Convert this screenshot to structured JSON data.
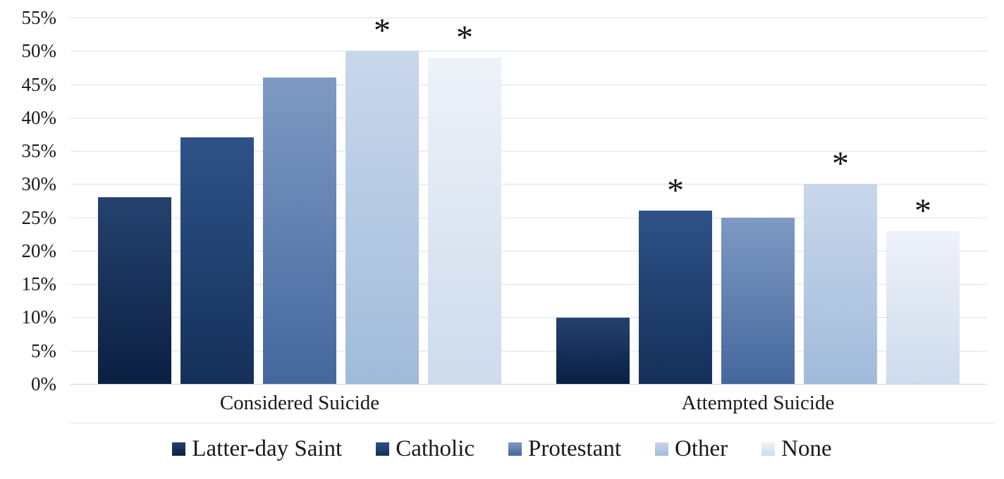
{
  "chart_data": {
    "type": "bar",
    "title": "",
    "xlabel": "",
    "ylabel": "",
    "categories": [
      "Considered Suicide",
      "Attempted Suicide"
    ],
    "series": [
      {
        "name": "Latter-day Saint",
        "values": [
          28,
          10
        ],
        "significant": [
          false,
          false
        ],
        "color_top": "#24426f",
        "color_bottom": "#0b1f42"
      },
      {
        "name": "Catholic",
        "values": [
          37,
          26
        ],
        "significant": [
          false,
          true
        ],
        "color_top": "#2e5288",
        "color_bottom": "#143059"
      },
      {
        "name": "Protestant",
        "values": [
          46,
          25
        ],
        "significant": [
          false,
          false
        ],
        "color_top": "#7e9ac4",
        "color_bottom": "#44679d"
      },
      {
        "name": "Other",
        "values": [
          50,
          30
        ],
        "significant": [
          true,
          true
        ],
        "color_top": "#c9d7eb",
        "color_bottom": "#a0bbda"
      },
      {
        "name": "None",
        "values": [
          49,
          23
        ],
        "significant": [
          true,
          true
        ],
        "color_top": "#eef2f9",
        "color_bottom": "#cddbec"
      }
    ],
    "ylim": [
      0,
      55
    ],
    "ytick_step": 5,
    "ytick_labels": [
      "0%",
      "5%",
      "10%",
      "15%",
      "20%",
      "25%",
      "30%",
      "35%",
      "40%",
      "45%",
      "50%",
      "55%"
    ],
    "grid": true,
    "legend_position": "bottom",
    "significance_marker": "*"
  },
  "colors": {
    "gridline": "#d9e2f2",
    "baseline": "#c3d4ea",
    "text": "#1a1a1a",
    "background": "#ffffff"
  }
}
